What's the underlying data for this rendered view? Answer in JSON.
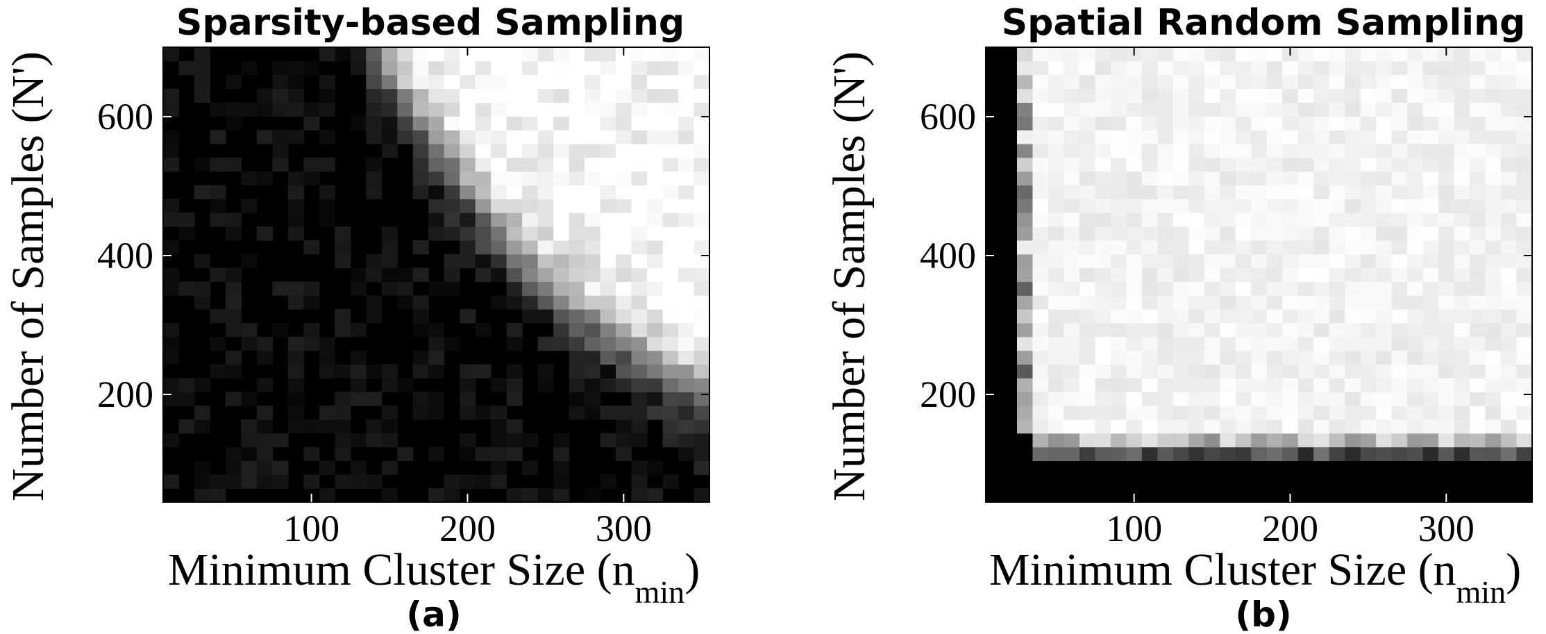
{
  "chart_data": [
    {
      "type": "heatmap",
      "title": "Sparsity-based Sampling",
      "xlabel": "Minimum Cluster Size (n",
      "xlabel_sub": "min",
      "xlabel_close": ")",
      "ylabel": "Number of Samples (N')",
      "panel_label": "(a)",
      "xlim": [
        5,
        355
      ],
      "ylim": [
        45,
        700
      ],
      "xticks": [
        100,
        200,
        300
      ],
      "yticks": [
        200,
        400,
        600
      ],
      "colormap": "gray",
      "value_range": [
        0,
        1
      ],
      "grid": false,
      "boundary": {
        "n_min": [
          140,
          160,
          180,
          200,
          220,
          240,
          260,
          280,
          300,
          320,
          340,
          355
        ],
        "samples_at_transition": [
          700,
          620,
          560,
          490,
          430,
          380,
          340,
          300,
          270,
          240,
          210,
          190
        ]
      }
    },
    {
      "type": "heatmap",
      "title": "Spatial Random Sampling",
      "xlabel": "Minimum Cluster Size (n",
      "xlabel_sub": "min",
      "xlabel_close": ")",
      "ylabel": "Number of Samples (N')",
      "panel_label": "(b)",
      "xlim": [
        5,
        355
      ],
      "ylim": [
        45,
        700
      ],
      "xticks": [
        100,
        200,
        300
      ],
      "yticks": [
        200,
        400,
        600
      ],
      "colormap": "gray",
      "value_range": [
        0,
        1
      ],
      "grid": false,
      "boundary": {
        "n_min_threshold": 30,
        "samples_threshold": 120
      }
    }
  ]
}
